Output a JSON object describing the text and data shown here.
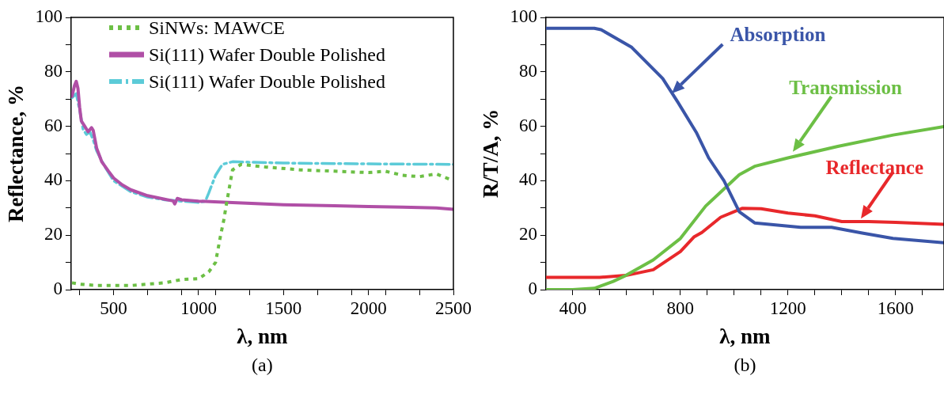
{
  "chart_data": [
    {
      "type": "line",
      "xlabel": "λ, nm",
      "ylabel": "Reflectance, %",
      "legend": "top left",
      "grid": false,
      "marker": "none",
      "annotations": [
        "(a)"
      ],
      "xlim": [
        250,
        2500
      ],
      "ylim": [
        0,
        100
      ],
      "xticks": [
        {
          "value": 300,
          "label": null
        },
        500,
        {
          "value": 700,
          "label": null
        },
        {
          "value": 900,
          "label": null
        },
        1000,
        {
          "value": 1100,
          "label": null
        },
        {
          "value": 1300,
          "label": null
        },
        1500,
        {
          "value": 1700,
          "label": null
        },
        {
          "value": 1900,
          "label": null
        },
        2000,
        {
          "value": 2100,
          "label": null
        },
        {
          "value": 2300,
          "label": null
        },
        2500
      ],
      "yticks": [
        0,
        {
          "value": 10,
          "label": null
        },
        20,
        {
          "value": 30,
          "label": null
        },
        40,
        {
          "value": 50,
          "label": null
        },
        60,
        {
          "value": 70,
          "label": null
        },
        80,
        {
          "value": 90,
          "label": null
        },
        100
      ],
      "series": [
        {
          "name": "SiNWs: MAWCE",
          "color": "#6cbf45",
          "line_style": "dotted",
          "x": [
            255,
            300,
            400,
            600,
            800,
            900,
            1000,
            1060,
            1100,
            1130,
            1150,
            1160,
            1200,
            1250,
            1400,
            1600,
            1800,
            2000,
            2100,
            2200,
            2300,
            2400,
            2500
          ],
          "values": [
            2.5,
            2,
            1.5,
            1.5,
            2.5,
            3.7,
            4,
            6.5,
            10,
            20,
            26,
            30,
            44,
            46,
            45,
            44,
            43.5,
            43,
            43.5,
            42,
            41.5,
            42.5,
            40
          ]
        },
        {
          "name": "Si(111) Wafer Double Polished",
          "color": "#b04fa6",
          "line_style": "solid",
          "x": [
            255,
            270,
            280,
            290,
            300,
            310,
            330,
            350,
            370,
            380,
            400,
            430,
            470,
            500,
            550,
            600,
            700,
            800,
            850,
            860,
            875,
            900,
            1000,
            1200,
            1500,
            1800,
            2000,
            2200,
            2400,
            2500
          ],
          "values": [
            71,
            75,
            76.5,
            74,
            67,
            62,
            60,
            58,
            59.5,
            58.5,
            52,
            47,
            43.5,
            41,
            38.5,
            36.7,
            34.5,
            33.2,
            32.6,
            31.5,
            33.5,
            33,
            32.5,
            32,
            31.2,
            30.8,
            30.5,
            30.3,
            30,
            29.5
          ]
        },
        {
          "name": "Si(111) Wafer Double Polished",
          "color": "#5ccbd8",
          "line_style": "dashed",
          "x": [
            255,
            280,
            300,
            320,
            340,
            360,
            380,
            400,
            450,
            500,
            600,
            700,
            800,
            900,
            1000,
            1040,
            1060,
            1100,
            1140,
            1200,
            1500,
            2000,
            2500
          ],
          "values": [
            70.5,
            72,
            66,
            59,
            57,
            58,
            55,
            51,
            45,
            40,
            36,
            34,
            33,
            32.5,
            32,
            32.5,
            35.5,
            42,
            46,
            47,
            46.5,
            46.2,
            46
          ]
        }
      ]
    },
    {
      "type": "line",
      "xlabel": "λ, nm",
      "ylabel": "R/T/A, %",
      "legend": false,
      "grid": false,
      "marker": "none",
      "annotations": [
        "(b)"
      ],
      "xlim": [
        300,
        1780
      ],
      "ylim": [
        0,
        100
      ],
      "xticks": [
        400,
        {
          "value": 500,
          "label": null
        },
        {
          "value": 600,
          "label": null
        },
        {
          "value": 700,
          "label": null
        },
        800,
        {
          "value": 900,
          "label": null
        },
        {
          "value": 1000,
          "label": null
        },
        {
          "value": 1100,
          "label": null
        },
        1200,
        {
          "value": 1300,
          "label": null
        },
        {
          "value": 1400,
          "label": null
        },
        {
          "value": 1500,
          "label": null
        },
        1600,
        {
          "value": 1700,
          "label": null
        }
      ],
      "yticks": [
        0,
        {
          "value": 10,
          "label": null
        },
        20,
        {
          "value": 30,
          "label": null
        },
        40,
        {
          "value": 50,
          "label": null
        },
        60,
        {
          "value": 70,
          "label": null
        },
        80,
        {
          "value": 90,
          "label": null
        },
        100
      ],
      "series": [
        {
          "name": "Absorption",
          "color": "#3a55a8",
          "line_style": "solid",
          "x": [
            300,
            400,
            480,
            505,
            619,
            734,
            791,
            859,
            905,
            962,
            1019,
            1076,
            1247,
            1362,
            1476,
            1590,
            1780
          ],
          "values": [
            96,
            96,
            96,
            95.5,
            89,
            77.6,
            68.8,
            57.8,
            48.4,
            40,
            28.6,
            24.5,
            22.9,
            22.9,
            20.8,
            18.8,
            17.2
          ]
        },
        {
          "name": "Transmission",
          "color": "#6cbf45",
          "line_style": "solid",
          "x": [
            300,
            400,
            480,
            550,
            597,
            699,
            800,
            894,
            1019,
            1076,
            1200,
            1385,
            1591,
            1780
          ],
          "values": [
            0,
            0,
            0.5,
            3,
            5.2,
            10.9,
            18.8,
            30.7,
            42.2,
            45.3,
            48.4,
            52.6,
            56.8,
            59.9
          ]
        },
        {
          "name": "Reflectance",
          "color": "#e8282b",
          "line_style": "solid",
          "x": [
            300,
            400,
            500,
            597,
            699,
            800,
            850,
            880,
            950,
            1031,
            1100,
            1200,
            1300,
            1400,
            1500,
            1600,
            1780
          ],
          "values": [
            4.5,
            4.5,
            4.5,
            5.2,
            7.3,
            14,
            19.3,
            21,
            26.6,
            29.9,
            29.7,
            28.1,
            27.1,
            25,
            25,
            24.7,
            24
          ]
        }
      ]
    }
  ]
}
